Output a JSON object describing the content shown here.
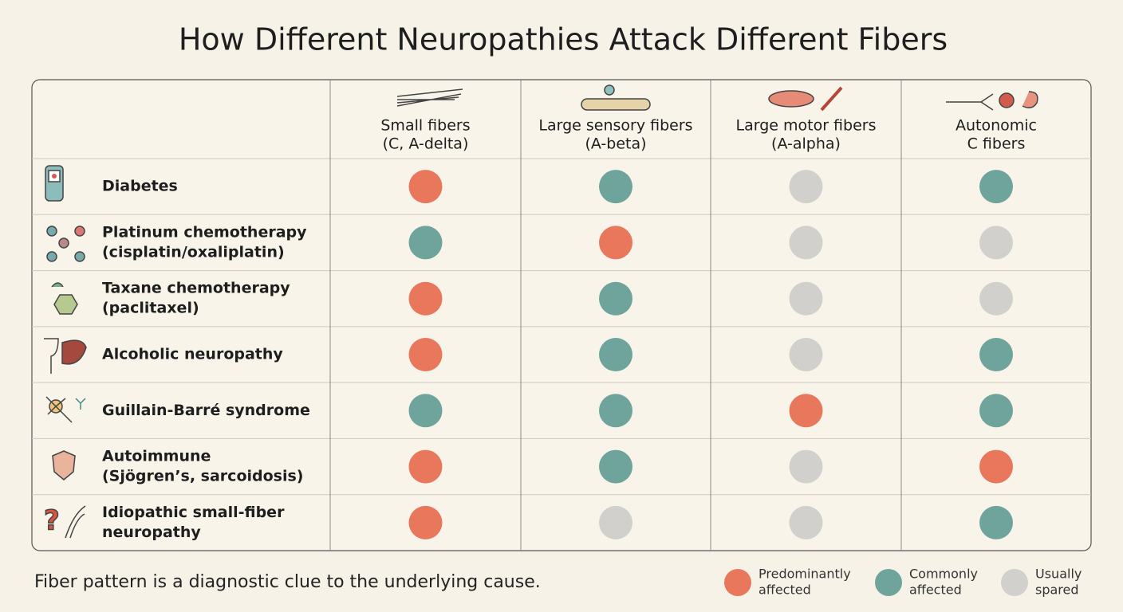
{
  "title": "How Different Neuropathies Attack Different Fibers",
  "table": {
    "columns": [
      [
        "Small fibers",
        "(C, A-delta)"
      ],
      [
        "Large sensory fibers",
        "(A-beta)"
      ],
      [
        "Large motor fibers",
        "(A-alpha)"
      ],
      [
        "Autonomic",
        "C fibers"
      ]
    ],
    "rows": [
      {
        "label": [
          "Diabetes"
        ],
        "cells": [
          0,
          1,
          2,
          1
        ]
      },
      {
        "label": [
          "Platinum chemotherapy",
          "(cisplatin/oxaliplatin)"
        ],
        "cells": [
          1,
          0,
          2,
          2
        ]
      },
      {
        "label": [
          "Taxane chemotherapy",
          "(paclitaxel)"
        ],
        "cells": [
          0,
          1,
          2,
          2
        ]
      },
      {
        "label": [
          "Alcoholic neuropathy"
        ],
        "cells": [
          0,
          1,
          2,
          1
        ]
      },
      {
        "label": [
          "Guillain-Barré syndrome"
        ],
        "cells": [
          1,
          1,
          0,
          1
        ]
      },
      {
        "label": [
          "Autoimmune",
          "(Sjögren’s, sarcoidosis)"
        ],
        "cells": [
          0,
          1,
          2,
          0
        ]
      },
      {
        "label": [
          "Idiopathic small-fiber",
          "neuropathy"
        ],
        "cells": [
          0,
          2,
          2,
          1
        ]
      }
    ]
  },
  "legend": [
    {
      "label": [
        "Predominantly",
        "affected"
      ],
      "color": "#e8775b"
    },
    {
      "label": [
        "Commonly",
        "affected"
      ],
      "color": "#6fa49d"
    },
    {
      "label": [
        "Usually",
        "spared"
      ],
      "color": "#d1d0cc"
    }
  ],
  "note": "Fiber pattern is a diagnostic clue to the underlying cause."
}
